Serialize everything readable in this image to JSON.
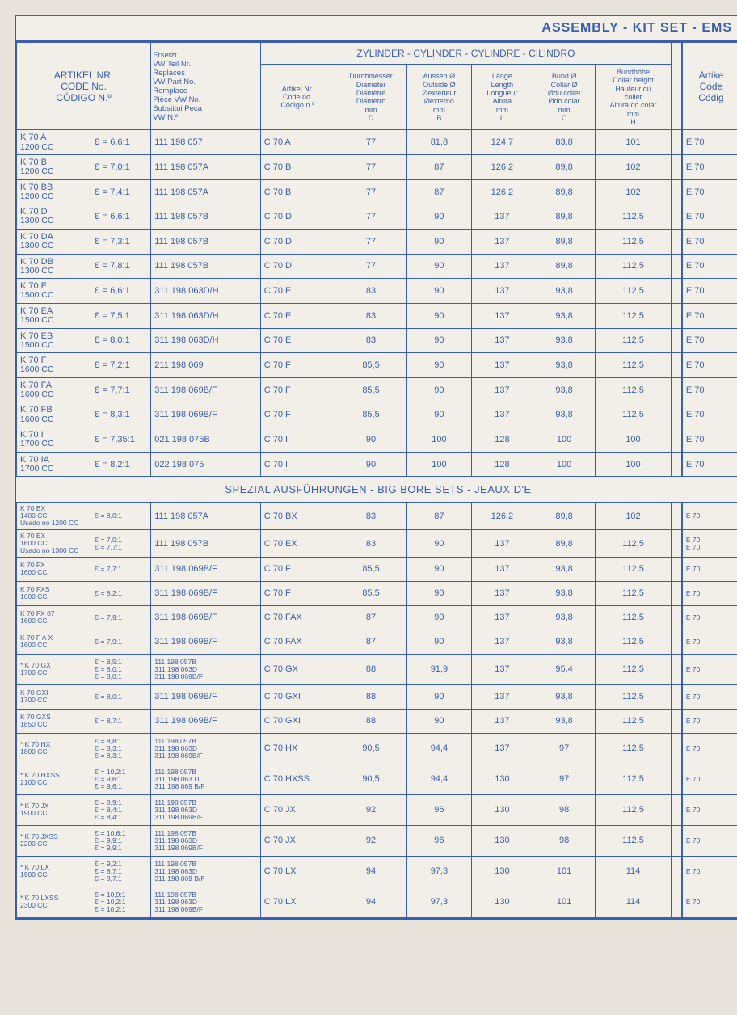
{
  "banner": "ASSEMBLY - KIT SET - EMS",
  "headers": {
    "artikel": "ARTIKEL NR.\nCODE No.\nCÓDIGO N.º",
    "ersatz": "Ersetzt\nVW Teil Nr.\nReplaces\nVW Part No.\nRemplace\nPièce VW No.\nSubstitui Peça\nVW N.º",
    "cylinder_group": "ZYLINDER - CYLINDER - CYLINDRE - CILINDRO",
    "sub_code": "Artikel Nr.\nCode no.\nCódigo n.º",
    "sub_d": "Durchmesser\nDiameter\nDiamètre\nDiametro\nmm\nD",
    "sub_b": "Aussen Ø\nOutside Ø\nØextérieur\nØexterno\nmm\nB",
    "sub_l": "Länge\nLength\nLongueur\nAltura\nmm\nL",
    "sub_c": "Bund Ø\nCollar Ø\nØdu collet\nØdo colar\nmm\nC",
    "sub_h": "Bundhöhe\nCollar height\nHauteur du\ncollet\nAltura do colar\nmm\nH",
    "sub_e": "Artike\nCode\nCódig"
  },
  "section2": "SPEZIAL AUSFÜHRUNGEN - BIG BORE SETS - JEAUX D'E",
  "rows1": [
    {
      "a1": "K 70 A",
      "a2": "1200 CC",
      "eps": "Ɛ = 6,6:1",
      "repl": "111 198 057",
      "code": "C 70 A",
      "d": "77",
      "b": "81,8",
      "l": "124,7",
      "c": "83,8",
      "h": "101",
      "e": "E 70"
    },
    {
      "a1": "K 70 B",
      "a2": "1200 CC",
      "eps": "Ɛ = 7,0:1",
      "repl": "111 198 057A",
      "code": "C 70 B",
      "d": "77",
      "b": "87",
      "l": "126,2",
      "c": "89,8",
      "h": "102",
      "e": "E 70"
    },
    {
      "a1": "K 70 BB",
      "a2": "1200 CC",
      "eps": "Ɛ = 7,4:1",
      "repl": "111 198 057A",
      "code": "C 70 B",
      "d": "77",
      "b": "87",
      "l": "126,2",
      "c": "89,8",
      "h": "102",
      "e": "E 70"
    },
    {
      "a1": "K 70 D",
      "a2": "1300 CC",
      "eps": "Ɛ = 6,6:1",
      "repl": "111 198 057B",
      "code": "C 70 D",
      "d": "77",
      "b": "90",
      "l": "137",
      "c": "89,8",
      "h": "112,5",
      "e": "E 70"
    },
    {
      "a1": "K 70 DA",
      "a2": "1300 CC",
      "eps": "Ɛ = 7,3:1",
      "repl": "111 198 057B",
      "code": "C 70 D",
      "d": "77",
      "b": "90",
      "l": "137",
      "c": "89,8",
      "h": "112,5",
      "e": "E 70"
    },
    {
      "a1": "K 70 DB",
      "a2": "1300 CC",
      "eps": "Ɛ = 7,8:1",
      "repl": "111 198 057B",
      "code": "C 70 D",
      "d": "77",
      "b": "90",
      "l": "137",
      "c": "89,8",
      "h": "112,5",
      "e": "E 70"
    },
    {
      "a1": "K 70 E",
      "a2": "1500 CC",
      "eps": "Ɛ = 6,6:1",
      "repl": "311 198 063D/H",
      "code": "C 70 E",
      "d": "83",
      "b": "90",
      "l": "137",
      "c": "93,8",
      "h": "112,5",
      "e": "E 70"
    },
    {
      "a1": "K 70 EA",
      "a2": "1500 CC",
      "eps": "Ɛ = 7,5:1",
      "repl": "311 198 063D/H",
      "code": "C 70 E",
      "d": "83",
      "b": "90",
      "l": "137",
      "c": "93,8",
      "h": "112,5",
      "e": "E 70"
    },
    {
      "a1": "K 70 EB",
      "a2": "1500 CC",
      "eps": "Ɛ = 8,0:1",
      "repl": "311 198 063D/H",
      "code": "C 70 E",
      "d": "83",
      "b": "90",
      "l": "137",
      "c": "93,8",
      "h": "112,5",
      "e": "E 70"
    },
    {
      "a1": "K 70 F",
      "a2": "1600 CC",
      "eps": "Ɛ = 7,2:1",
      "repl": "211 198 069",
      "code": "C 70 F",
      "d": "85,5",
      "b": "90",
      "l": "137",
      "c": "93,8",
      "h": "112,5",
      "e": "E 70"
    },
    {
      "a1": "K 70 FA",
      "a2": "1600 CC",
      "eps": "Ɛ = 7,7:1",
      "repl": "311 198 069B/F",
      "code": "C 70 F",
      "d": "85,5",
      "b": "90",
      "l": "137",
      "c": "93,8",
      "h": "112,5",
      "e": "E 70"
    },
    {
      "a1": "K 70 FB",
      "a2": "1600 CC",
      "eps": "Ɛ = 8,3:1",
      "repl": "311 198 069B/F",
      "code": "C 70 F",
      "d": "85,5",
      "b": "90",
      "l": "137",
      "c": "93,8",
      "h": "112,5",
      "e": "E 70"
    },
    {
      "a1": "K 70 I",
      "a2": "1700 CC",
      "eps": "Ɛ = 7,35:1",
      "repl": "021 198 075B",
      "code": "C 70 I",
      "d": "90",
      "b": "100",
      "l": "128",
      "c": "100",
      "h": "100",
      "e": "E 70"
    },
    {
      "a1": "K 70 IA",
      "a2": "1700 CC",
      "eps": "Ɛ = 8,2:1",
      "repl": "022 198 075",
      "code": "C 70 I",
      "d": "90",
      "b": "100",
      "l": "128",
      "c": "100",
      "h": "100",
      "e": "E 70"
    }
  ],
  "rows2": [
    {
      "a": "K 70 BX\n1400 CC\nUsado no 1200 CC",
      "eps": "Ɛ = 8,0:1",
      "repl": "111 198 057A",
      "code": "C 70 BX",
      "d": "83",
      "b": "87",
      "l": "126,2",
      "c": "89,8",
      "h": "102",
      "e": "E 70"
    },
    {
      "a": "K 70 EX\n1600 CC\nUsado no 1300 CC",
      "eps": "Ɛ = 7,0:1\nƐ = 7,7:1",
      "repl": "111 198 057B",
      "code": "C 70 EX",
      "d": "83",
      "b": "90",
      "l": "137",
      "c": "89,8",
      "h": "112,5",
      "e": "E 70\nE 70"
    },
    {
      "a": "K 70 FX\n1600 CC",
      "eps": "Ɛ = 7,7:1",
      "repl": "311 198 069B/F",
      "code": "C 70 F",
      "d": "85,5",
      "b": "90",
      "l": "137",
      "c": "93,8",
      "h": "112,5",
      "e": "E 70"
    },
    {
      "a": "K 70 FXS\n1600 CC",
      "eps": "Ɛ = 8,2:1",
      "repl": "311 198 069B/F",
      "code": "C 70 F",
      "d": "85,5",
      "b": "90",
      "l": "137",
      "c": "93,8",
      "h": "112,5",
      "e": "E 70"
    },
    {
      "a": "K 70 FX 87\n1600 CC",
      "eps": "Ɛ = 7,9:1",
      "repl": "311 198 069B/F",
      "code": "C 70 FAX",
      "d": "87",
      "b": "90",
      "l": "137",
      "c": "93,8",
      "h": "112,5",
      "e": "E 70"
    },
    {
      "a": "K 70 F A X\n1600 CC",
      "eps": "Ɛ = 7,9:1",
      "repl": "311 198 069B/F",
      "code": "C 70 FAX",
      "d": "87",
      "b": "90",
      "l": "137",
      "c": "93,8",
      "h": "112,5",
      "e": "E 70"
    },
    {
      "a": "* K 70 GX\n1700 CC",
      "eps": "Ɛ = 8,5:1\nƐ = 8,0:1\nƐ = 8,0:1",
      "repl": "111 198 057B\n311 198 063D\n311 198 069B/F",
      "code": "C 70 GX",
      "d": "88",
      "b": "91,9",
      "l": "137",
      "c": "95,4",
      "h": "112,5",
      "e": "E 70"
    },
    {
      "a": "K 70 GXI\n1700 CC",
      "eps": "Ɛ = 8,0:1",
      "repl": "311 198 069B/F",
      "code": "C 70 GXI",
      "d": "88",
      "b": "90",
      "l": "137",
      "c": "93,8",
      "h": "112,5",
      "e": "E 70"
    },
    {
      "a": "K 70 GXS\n1850 CC",
      "eps": "Ɛ = 8,7:1",
      "repl": "311 198 069B/F",
      "code": "C 70 GXI",
      "d": "88",
      "b": "90",
      "l": "137",
      "c": "93,8",
      "h": "112,5",
      "e": "E 70"
    },
    {
      "a": "* K 70 HX\n1800 CC",
      "eps": "Ɛ = 8,8:1\nƐ = 8,3:1\nƐ = 8,3:1",
      "repl": "111 198 057B\n311 198 063D\n311 198 069B/F",
      "code": "C 70 HX",
      "d": "90,5",
      "b": "94,4",
      "l": "137",
      "c": "97",
      "h": "112,5",
      "e": "E 70"
    },
    {
      "a": "* K 70 HXSS\n2100 CC",
      "eps": "Ɛ = 10,2:1\nƐ =  9,6:1\nƐ =  9,6:1",
      "repl": "111 198 057B\n311 198 063 D\n311 198 069 B/F",
      "code": "C 70 HXSS",
      "d": "90,5",
      "b": "94,4",
      "l": "130",
      "c": "97",
      "h": "112,5",
      "e": "E 70"
    },
    {
      "a": "* K 70 JX\n1900 CC",
      "eps": "Ɛ = 8,9:1\nƐ = 8,4:1\nƐ = 8,4:1",
      "repl": "111 198 057B\n311 198 063D\n311 198 069B/F",
      "code": "C 70 JX",
      "d": "92",
      "b": "96",
      "l": "130",
      "c": "98",
      "h": "112,5",
      "e": "E 70"
    },
    {
      "a": "* K 70 JXSS\n2200 CC",
      "eps": "Ɛ = 10,6:1\nƐ =  9,9:1\nƐ =  9,9:1",
      "repl": "111 198 057B\n311 198 063D\n311 198 069B/F",
      "code": "C 70 JX",
      "d": "92",
      "b": "96",
      "l": "130",
      "c": "98",
      "h": "112,5",
      "e": "E 70"
    },
    {
      "a": "* K 70 LX\n1900 CC",
      "eps": "Ɛ = 9,2:1\nƐ = 8,7:1\nƐ = 8,7:1",
      "repl": "111 198 057B\n311 198 063D\n311 198 069 B/F",
      "code": "C 70 LX",
      "d": "94",
      "b": "97,3",
      "l": "130",
      "c": "101",
      "h": "114",
      "e": "E 70"
    },
    {
      "a": "* K 70 LXSS\n2300 CC",
      "eps": "Ɛ = 10,9:1\nƐ = 10,2:1\nƐ = 10,2:1",
      "repl": "111 198 057B\n311 198 063D\n311 198 069B/F",
      "code": "C 70 LX",
      "d": "94",
      "b": "97,3",
      "l": "130",
      "c": "101",
      "h": "114",
      "e": "E 70"
    }
  ]
}
